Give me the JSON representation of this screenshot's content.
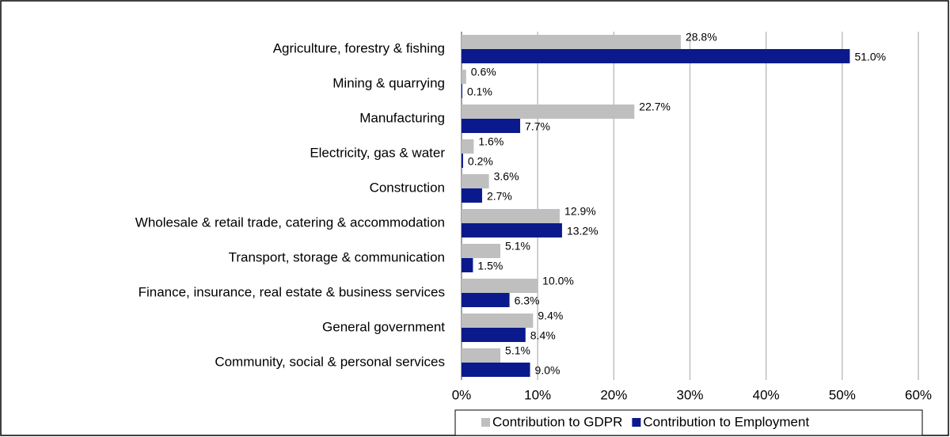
{
  "chart_data": {
    "type": "hbar",
    "categories": [
      "Agriculture, forestry & fishing",
      "Mining & quarrying",
      "Manufacturing",
      "Electricity, gas & water",
      "Construction",
      "Wholesale & retail trade, catering & accommodation",
      "Transport, storage & communication",
      "Finance, insurance, real estate & business services",
      "General government",
      "Community, social & personal services"
    ],
    "series": [
      {
        "name": "Contribution to GDPR",
        "color": "#bfbfbf",
        "values": [
          28.8,
          0.6,
          22.7,
          1.6,
          3.6,
          12.9,
          5.1,
          10.0,
          9.4,
          5.1
        ],
        "value_labels": [
          "28.8%",
          "0.6%",
          "22.7%",
          "1.6%",
          "3.6%",
          "12.9%",
          "5.1%",
          "10.0%",
          "9.4%",
          "5.1%"
        ]
      },
      {
        "name": "Contribution to Employment",
        "color": "#0a1a8c",
        "values": [
          51.0,
          0.1,
          7.7,
          0.2,
          2.7,
          13.2,
          1.5,
          6.3,
          8.4,
          9.0
        ],
        "value_labels": [
          "51.0%",
          "0.1%",
          "7.7%",
          "0.2%",
          "2.7%",
          "13.2%",
          "1.5%",
          "6.3%",
          "8.4%",
          "9.0%"
        ]
      }
    ],
    "xlim": [
      0,
      60
    ],
    "xticks": [
      {
        "value": 0,
        "label": "0%"
      },
      {
        "value": 10,
        "label": "10%"
      },
      {
        "value": 20,
        "label": "20%"
      },
      {
        "value": 30,
        "label": "30%"
      },
      {
        "value": 40,
        "label": "40%"
      },
      {
        "value": 50,
        "label": "50%"
      },
      {
        "value": 60,
        "label": "60%"
      }
    ],
    "grid": true,
    "legend": "bottom"
  }
}
